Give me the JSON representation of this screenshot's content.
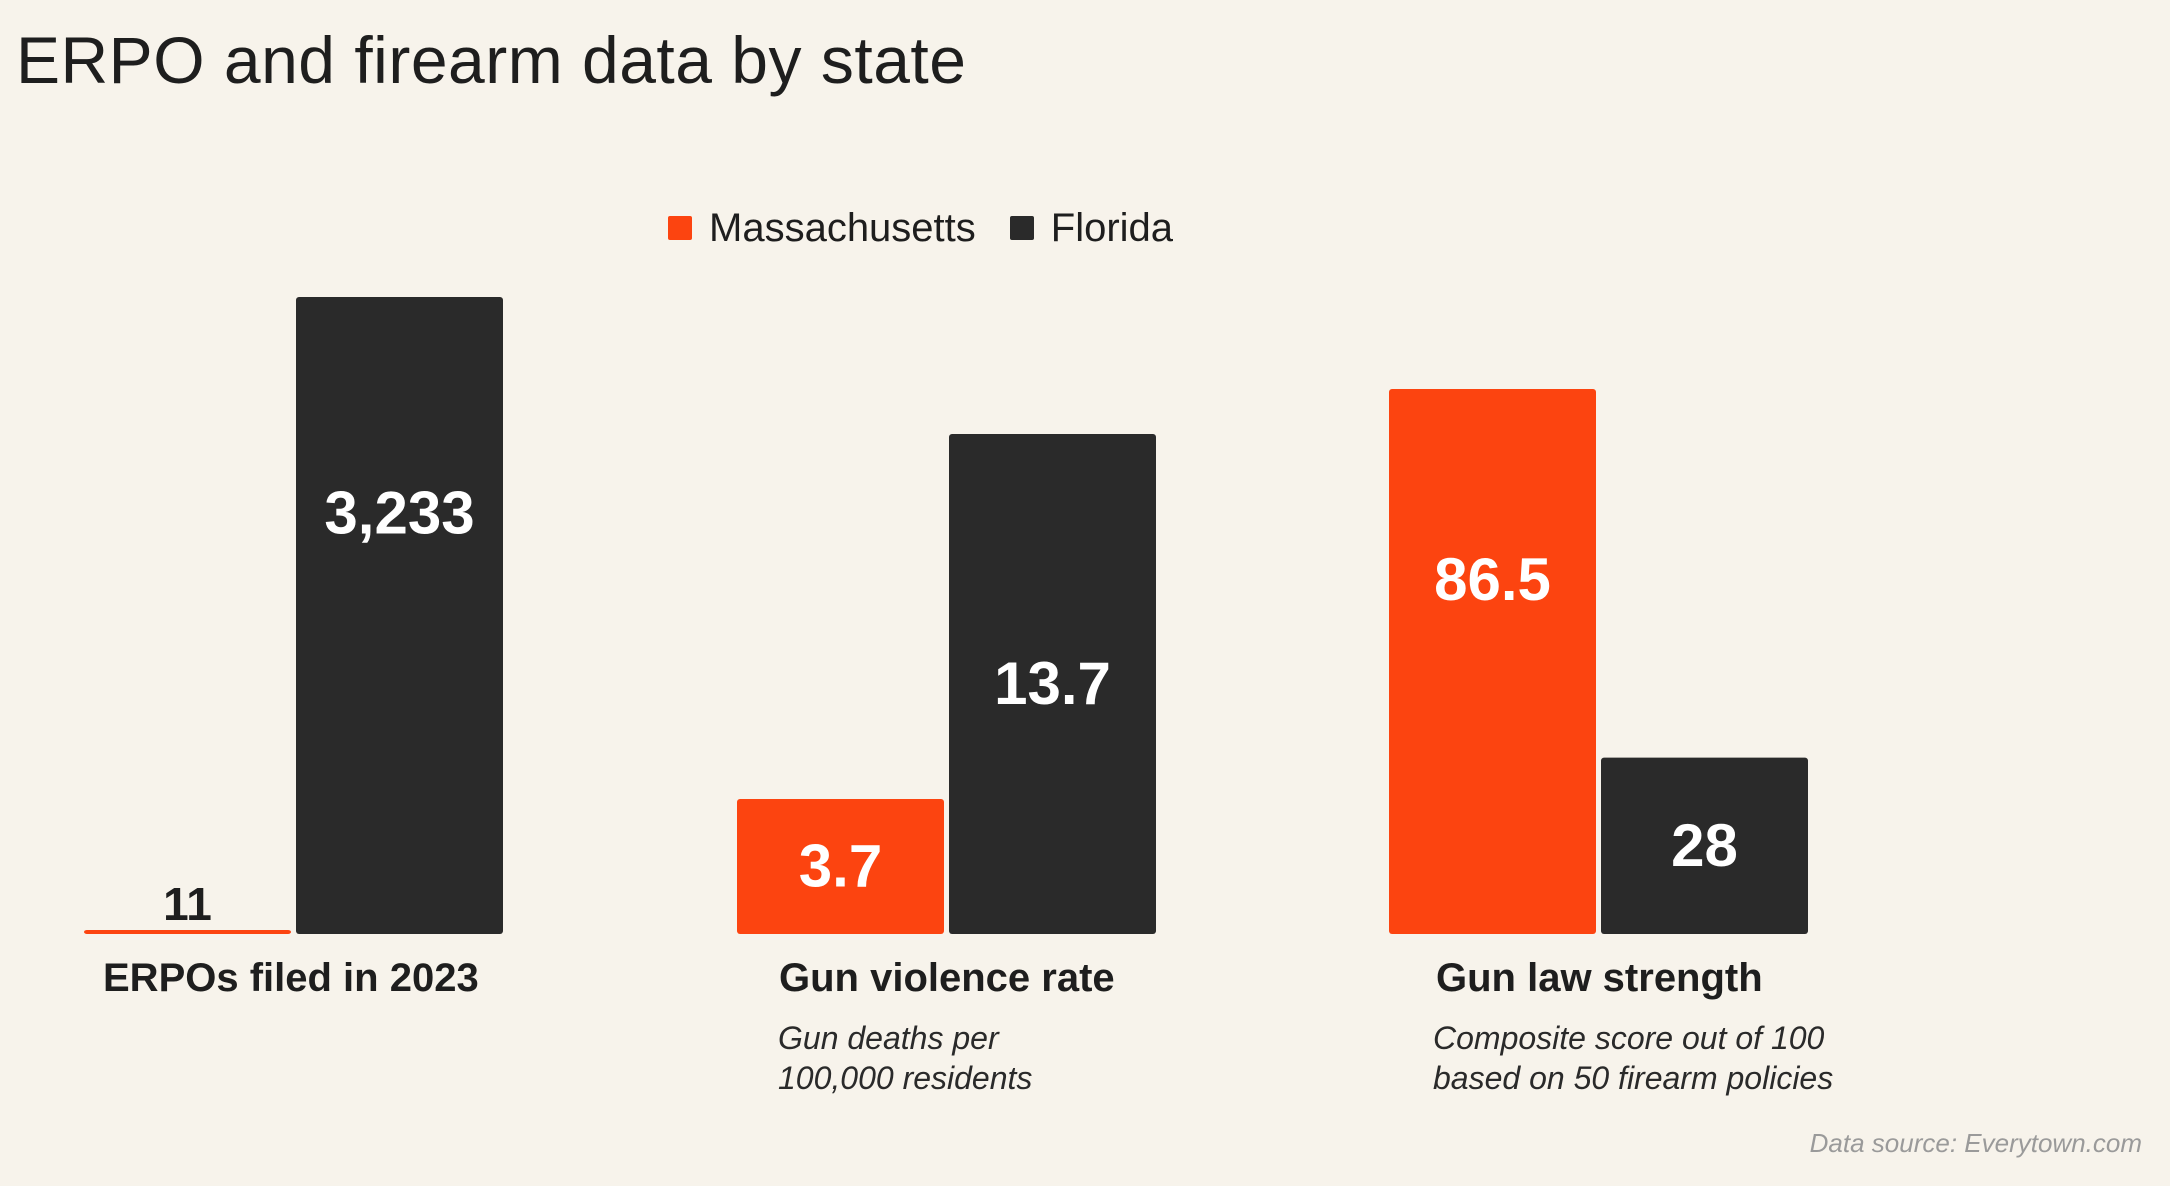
{
  "title": "ERPO and firearm data by state",
  "source": "Data source: Everytown.com",
  "colors": {
    "massachusetts": "#fc4410",
    "florida": "#2a2a2a",
    "background": "#f7f3eb"
  },
  "legend": [
    {
      "name": "Massachusetts",
      "color": "#fc4410"
    },
    {
      "name": "Florida",
      "color": "#2a2a2a"
    }
  ],
  "chart_data": [
    {
      "type": "bar",
      "title": "ERPOs filed in 2023",
      "subtitle": "",
      "categories": [
        "Massachusetts",
        "Florida"
      ],
      "values": [
        11,
        3233
      ],
      "labels": [
        "11",
        "3,233"
      ],
      "ylim": [
        0,
        3233
      ]
    },
    {
      "type": "bar",
      "title": "Gun violence rate",
      "subtitle": [
        "Gun deaths per",
        "100,000 residents"
      ],
      "categories": [
        "Massachusetts",
        "Florida"
      ],
      "values": [
        3.7,
        13.7
      ],
      "labels": [
        "3.7",
        "13.7"
      ],
      "ylim": [
        0,
        20
      ]
    },
    {
      "type": "bar",
      "title": "Gun law strength",
      "subtitle": [
        "Composite score out of 100",
        "based on 50 firearm policies"
      ],
      "categories": [
        "Massachusetts",
        "Florida"
      ],
      "values": [
        86.5,
        28
      ],
      "labels": [
        "86.5",
        "28"
      ],
      "ylim": [
        0,
        100
      ]
    }
  ]
}
